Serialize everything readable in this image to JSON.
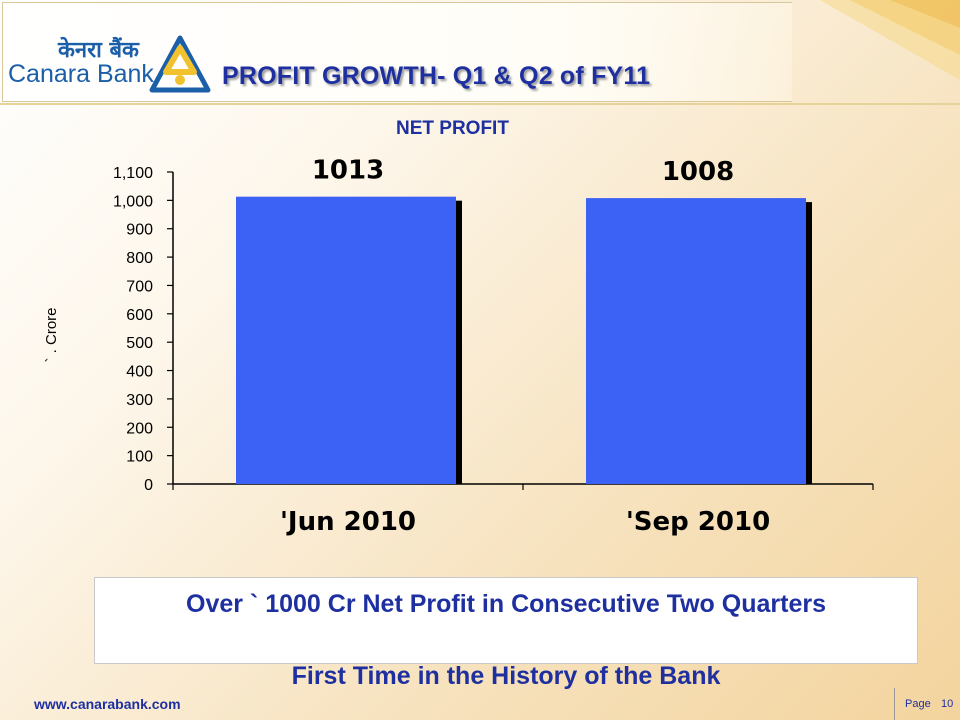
{
  "header": {
    "logo_hindi": "केनरा बैंक",
    "logo_english": "Canara Bank",
    "title": "PROFIT GROWTH- Q1 & Q2 of FY11"
  },
  "chart_data": {
    "type": "bar",
    "title": "NET PROFIT",
    "ylabel": "` . Crore",
    "xlabel": "",
    "categories": [
      "'Jun 2010",
      "'Sep 2010"
    ],
    "values": [
      1013,
      1008
    ],
    "data_labels": [
      "1013",
      "1008"
    ],
    "ylim": [
      0,
      1100
    ],
    "yticks": [
      0,
      100,
      200,
      300,
      400,
      500,
      600,
      700,
      800,
      900,
      1000,
      1100
    ],
    "ytick_labels": [
      "0",
      "100",
      "200",
      "300",
      "400",
      "500",
      "600",
      "700",
      "800",
      "900",
      "1,000",
      "1,100"
    ],
    "bar_color": "#3b62f5",
    "grid": false,
    "legend": "none"
  },
  "message": {
    "line1": "Over ` 1000 Cr Net Profit in Consecutive Two Quarters",
    "line2": "First Time in the History of the Bank"
  },
  "footer": {
    "url": "www.canarabank.com",
    "page_label": "Page",
    "page_number": "10"
  },
  "colors": {
    "title_blue": "#1e2fa0",
    "logo_blue": "#1b5fa8",
    "logo_yellow": "#f2c12e"
  }
}
